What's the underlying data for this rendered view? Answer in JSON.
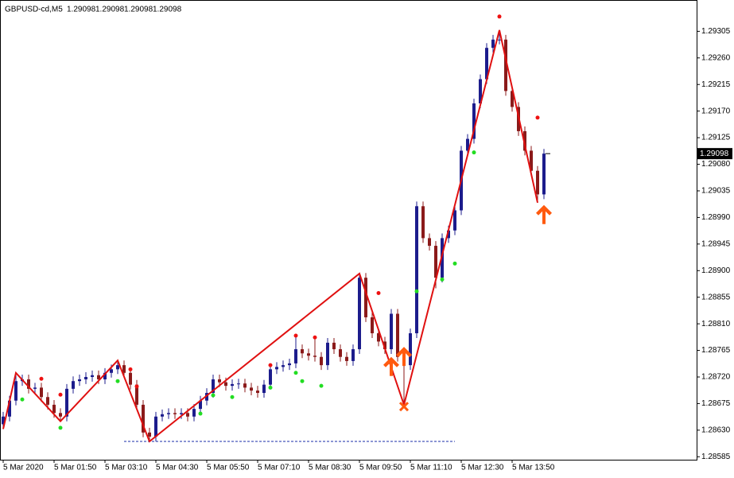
{
  "chart_data": {
    "type": "candlestick",
    "symbol": "GBPUSD-cd,M5",
    "header_values": [
      1.29098,
      1.29098,
      1.29098,
      1.29098
    ],
    "up_color": "#1c1c8c",
    "down_color": "#8b1a1a",
    "ylim": [
      1.2858,
      1.29358
    ],
    "yticks": [
      1.29305,
      {
        "value": 1.2926,
        "label": "1.29260"
      },
      1.29215,
      {
        "value": 1.2917,
        "label": "1.29170"
      },
      1.29125,
      {
        "value": 1.2908,
        "label": "1.29080"
      },
      1.29035,
      {
        "value": 1.2899,
        "label": "1.28990"
      },
      1.28945,
      {
        "value": 1.289,
        "label": "1.28900"
      },
      1.28855,
      {
        "value": 1.2881,
        "label": "1.28810"
      },
      1.28765,
      {
        "value": 1.2872,
        "label": "1.28720"
      },
      1.28675,
      {
        "value": 1.2863,
        "label": "1.28630"
      },
      1.28585
    ],
    "xticks": [
      {
        "value": 0,
        "label": "5 Mar 2020"
      },
      {
        "value": 8,
        "label": "5 Mar 01:50"
      },
      {
        "value": 16,
        "label": "5 Mar 03:10"
      },
      {
        "value": 24,
        "label": "5 Mar 04:30"
      },
      {
        "value": 32,
        "label": "5 Mar 05:50"
      },
      {
        "value": 40,
        "label": "5 Mar 07:10"
      },
      {
        "value": 48,
        "label": "5 Mar 08:30"
      },
      {
        "value": 56,
        "label": "5 Mar 09:50"
      },
      {
        "value": 64,
        "label": "5 Mar 11:10"
      },
      {
        "value": 72,
        "label": "5 Mar 12:30"
      },
      {
        "value": 80,
        "label": "5 Mar 13:50"
      }
    ],
    "ohlc": [
      [
        1.2864,
        1.28661,
        1.28632,
        1.28653
      ],
      [
        1.28653,
        1.28688,
        1.28645,
        1.2868
      ],
      [
        1.2868,
        1.28727,
        1.28672,
        1.28713
      ],
      [
        1.28713,
        1.28724,
        1.28705,
        1.28716
      ],
      [
        1.28716,
        1.28724,
        1.28692,
        1.287
      ],
      [
        1.287,
        1.2871,
        1.28692,
        1.28702
      ],
      [
        1.28702,
        1.2871,
        1.28678,
        1.28686
      ],
      [
        1.28686,
        1.28694,
        1.28665,
        1.28673
      ],
      [
        1.28673,
        1.28681,
        1.28651,
        1.28659
      ],
      [
        1.28659,
        1.28667,
        1.28645,
        1.28653
      ],
      [
        1.28653,
        1.28708,
        1.28645,
        1.287
      ],
      [
        1.287,
        1.28721,
        1.28692,
        1.28713
      ],
      [
        1.28713,
        1.28724,
        1.28705,
        1.28716
      ],
      [
        1.28716,
        1.28728,
        1.28708,
        1.2872
      ],
      [
        1.2872,
        1.28731,
        1.28712,
        1.28723
      ],
      [
        1.28723,
        1.28731,
        1.28708,
        1.28716
      ],
      [
        1.28716,
        1.28735,
        1.28708,
        1.28727
      ],
      [
        1.28727,
        1.28741,
        1.28719,
        1.28733
      ],
      [
        1.28733,
        1.28748,
        1.28725,
        1.2874
      ],
      [
        1.2874,
        1.28748,
        1.28719,
        1.28727
      ],
      [
        1.28727,
        1.28735,
        1.28699,
        1.28707
      ],
      [
        1.28707,
        1.28715,
        1.28665,
        1.28673
      ],
      [
        1.28673,
        1.28681,
        1.28618,
        1.28626
      ],
      [
        1.28626,
        1.28634,
        1.28611,
        1.28619
      ],
      [
        1.28619,
        1.28661,
        1.28611,
        1.28653
      ],
      [
        1.28653,
        1.28665,
        1.28645,
        1.28657
      ],
      [
        1.28657,
        1.28667,
        1.28649,
        1.28659
      ],
      [
        1.28659,
        1.28667,
        1.28649,
        1.28657
      ],
      [
        1.28657,
        1.28667,
        1.28649,
        1.28659
      ],
      [
        1.28659,
        1.28667,
        1.28645,
        1.28653
      ],
      [
        1.28653,
        1.28674,
        1.28645,
        1.28666
      ],
      [
        1.28666,
        1.28688,
        1.28658,
        1.2868
      ],
      [
        1.2868,
        1.28701,
        1.28672,
        1.28693
      ],
      [
        1.28693,
        1.28724,
        1.28685,
        1.28716
      ],
      [
        1.28716,
        1.28724,
        1.28703,
        1.28711
      ],
      [
        1.28711,
        1.28719,
        1.28697,
        1.28705
      ],
      [
        1.28705,
        1.28716,
        1.28697,
        1.28708
      ],
      [
        1.28708,
        1.28717,
        1.287,
        1.28709
      ],
      [
        1.28709,
        1.28717,
        1.28694,
        1.28702
      ],
      [
        1.28702,
        1.2871,
        1.28689,
        1.28697
      ],
      [
        1.28697,
        1.28705,
        1.28685,
        1.28693
      ],
      [
        1.28693,
        1.28715,
        1.28685,
        1.28707
      ],
      [
        1.28707,
        1.28741,
        1.28699,
        1.28733
      ],
      [
        1.28733,
        1.28745,
        1.28725,
        1.28737
      ],
      [
        1.28737,
        1.28748,
        1.28729,
        1.2874
      ],
      [
        1.2874,
        1.28751,
        1.28732,
        1.28743
      ],
      [
        1.28743,
        1.2879,
        1.28735,
        1.28767
      ],
      [
        1.28767,
        1.28775,
        1.28752,
        1.2876
      ],
      [
        1.2876,
        1.28768,
        1.28748,
        1.28756
      ],
      [
        1.28756,
        1.28785,
        1.28746,
        1.28754
      ],
      [
        1.28754,
        1.28762,
        1.28732,
        1.2874
      ],
      [
        1.2874,
        1.28786,
        1.28732,
        1.28778
      ],
      [
        1.28778,
        1.28786,
        1.28759,
        1.28767
      ],
      [
        1.28767,
        1.28775,
        1.28746,
        1.28754
      ],
      [
        1.28754,
        1.28762,
        1.28739,
        1.28747
      ],
      [
        1.28747,
        1.28775,
        1.28739,
        1.28767
      ],
      [
        1.28767,
        1.28895,
        1.28759,
        1.28888
      ],
      [
        1.28888,
        1.28896,
        1.28813,
        1.28821
      ],
      [
        1.28821,
        1.28829,
        1.28786,
        1.28794
      ],
      [
        1.28794,
        1.28802,
        1.28772,
        1.2878
      ],
      [
        1.2878,
        1.28788,
        1.28759,
        1.28767
      ],
      [
        1.28767,
        1.28835,
        1.28759,
        1.28827
      ],
      [
        1.28827,
        1.28835,
        1.28746,
        1.28754
      ],
      [
        1.28754,
        1.28762,
        1.28673,
        1.2874
      ],
      [
        1.2874,
        1.28802,
        1.28732,
        1.28794
      ],
      [
        1.28794,
        1.29017,
        1.28786,
        1.29009
      ],
      [
        1.29009,
        1.29017,
        1.28947,
        1.28955
      ],
      [
        1.28955,
        1.28963,
        1.28934,
        1.28942
      ],
      [
        1.28942,
        1.2895,
        1.2887,
        1.28888
      ],
      [
        1.28888,
        1.28963,
        1.2888,
        1.28955
      ],
      [
        1.28955,
        1.28976,
        1.28947,
        1.28968
      ],
      [
        1.28968,
        1.2901,
        1.2896,
        1.29002
      ],
      [
        1.29002,
        1.29111,
        1.28994,
        1.29103
      ],
      [
        1.29103,
        1.29131,
        1.29095,
        1.29123
      ],
      [
        1.29123,
        1.29191,
        1.29115,
        1.29183
      ],
      [
        1.29183,
        1.29232,
        1.29175,
        1.29224
      ],
      [
        1.29224,
        1.29285,
        1.29216,
        1.29277
      ],
      [
        1.29277,
        1.29299,
        1.29269,
        1.29291
      ],
      [
        1.29291,
        1.29307,
        1.29283,
        1.29291
      ],
      [
        1.29291,
        1.29299,
        1.29196,
        1.29204
      ],
      [
        1.29204,
        1.29212,
        1.29169,
        1.29177
      ],
      [
        1.29177,
        1.29185,
        1.29128,
        1.29136
      ],
      [
        1.29136,
        1.29144,
        1.29095,
        1.29103
      ],
      [
        1.29103,
        1.29111,
        1.29061,
        1.29069
      ],
      [
        1.29069,
        1.29077,
        1.29015,
        1.29029
      ],
      [
        1.29029,
        1.29106,
        1.29021,
        1.29098
      ]
    ],
    "zigzag": {
      "color": "#e01010",
      "x": [
        0,
        2,
        9,
        18,
        23,
        56,
        63,
        78,
        84
      ],
      "values": [
        1.28632,
        1.28727,
        1.28645,
        1.28748,
        1.28611,
        1.28895,
        1.28673,
        1.29307,
        1.29015
      ]
    },
    "upper_dots": {
      "color": "#ee1111",
      "x": [
        6,
        9,
        20,
        21,
        42,
        46,
        49,
        59,
        78,
        84
      ],
      "values": [
        1.28717,
        1.2869,
        1.28733,
        1.28704,
        1.2874,
        1.2879,
        1.28787,
        1.28862,
        1.2933,
        1.29159
      ]
    },
    "lower_dots": {
      "color": "#22dd22",
      "x": [
        3,
        9,
        18,
        31,
        33,
        36,
        42,
        46,
        47,
        50,
        65,
        69,
        71,
        74
      ],
      "values": [
        1.28682,
        1.28634,
        1.28713,
        1.28658,
        1.28689,
        1.28686,
        1.28702,
        1.28727,
        1.28713,
        1.28705,
        1.28865,
        1.28885,
        1.28912,
        1.291
      ]
    },
    "up_arrows": {
      "color": "#ff5a0f",
      "x": [
        61,
        63,
        85
      ],
      "values": [
        1.28754,
        1.28771,
        1.29011
      ]
    },
    "cross": {
      "color": "#ff5a0f",
      "x": 63,
      "value": 1.2867
    },
    "level": {
      "color": "#1a2ea8",
      "value": 1.28611,
      "from": 19,
      "to": 71
    }
  }
}
